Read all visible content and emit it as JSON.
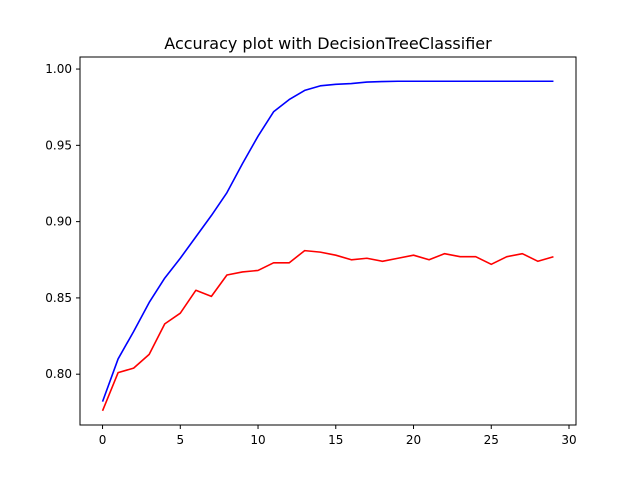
{
  "chart_data": {
    "type": "line",
    "title": "Accuracy plot  with DecisionTreeClassifier",
    "xlabel": "",
    "ylabel": "",
    "xlim": [
      -1.45,
      30.45
    ],
    "ylim": [
      0.7667,
      1.0079
    ],
    "x_ticks": [
      0,
      5,
      10,
      15,
      20,
      25,
      30
    ],
    "x_tick_labels": [
      "0",
      "5",
      "10",
      "15",
      "20",
      "25",
      "30"
    ],
    "y_ticks": [
      0.8,
      0.85,
      0.9,
      0.95,
      1.0
    ],
    "y_tick_labels": [
      "0.80",
      "0.85",
      "0.90",
      "0.95",
      "1.00"
    ],
    "grid": false,
    "legend": "none",
    "x": [
      0,
      1,
      2,
      3,
      4,
      5,
      6,
      7,
      8,
      9,
      10,
      11,
      12,
      13,
      14,
      15,
      16,
      17,
      18,
      19,
      20,
      21,
      22,
      23,
      24,
      25,
      26,
      27,
      28,
      29
    ],
    "series": [
      {
        "color": "#0000ff",
        "values": [
          0.782,
          0.81,
          0.828,
          0.847,
          0.863,
          0.876,
          0.89,
          0.904,
          0.919,
          0.938,
          0.956,
          0.972,
          0.98,
          0.986,
          0.989,
          0.99,
          0.9905,
          0.9915,
          0.9918,
          0.992,
          0.992,
          0.992,
          0.992,
          0.992,
          0.992,
          0.992,
          0.992,
          0.992,
          0.992,
          0.992
        ]
      },
      {
        "color": "#ff0000",
        "values": [
          0.776,
          0.801,
          0.804,
          0.813,
          0.833,
          0.84,
          0.855,
          0.851,
          0.865,
          0.867,
          0.868,
          0.873,
          0.873,
          0.881,
          0.88,
          0.878,
          0.875,
          0.876,
          0.874,
          0.876,
          0.878,
          0.875,
          0.879,
          0.877,
          0.877,
          0.872,
          0.877,
          0.879,
          0.874,
          0.877
        ]
      }
    ]
  }
}
